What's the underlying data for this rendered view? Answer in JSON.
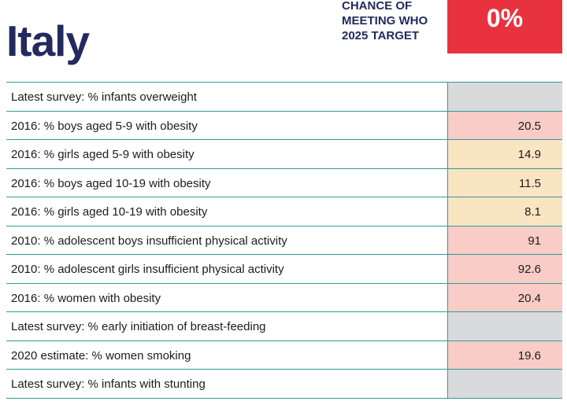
{
  "country": "Italy",
  "target": {
    "label": "CHANCE OF\nMEETING WHO\n2025 TARGET",
    "value": "0%",
    "color": "#e8333f"
  },
  "status_colors": {
    "none": "#d9dadc",
    "red": "#f9ccc7",
    "amber": "#fae5c3"
  },
  "rows": [
    {
      "label": "Latest survey: % infants overweight",
      "value": "",
      "status": "none"
    },
    {
      "label": "2016: % boys aged 5-9 with obesity",
      "value": "20.5",
      "status": "red"
    },
    {
      "label": "2016: % girls aged 5-9 with obesity",
      "value": "14.9",
      "status": "amber"
    },
    {
      "label": "2016: % boys aged 10-19 with obesity",
      "value": "11.5",
      "status": "amber"
    },
    {
      "label": "2016: % girls aged 10-19 with obesity",
      "value": "8.1",
      "status": "amber"
    },
    {
      "label": "2010: % adolescent boys insufficient physical activity",
      "value": "91",
      "status": "red"
    },
    {
      "label": "2010: % adolescent girls insufficient physical activity",
      "value": "92.6",
      "status": "red"
    },
    {
      "label": "2016: % women with obesity",
      "value": "20.4",
      "status": "red"
    },
    {
      "label": "Latest survey: % early initiation of breast-feeding",
      "value": "",
      "status": "none"
    },
    {
      "label": "2020 estimate: % women smoking",
      "value": "19.6",
      "status": "red"
    },
    {
      "label": "Latest survey: % infants with stunting",
      "value": "",
      "status": "none"
    }
  ]
}
